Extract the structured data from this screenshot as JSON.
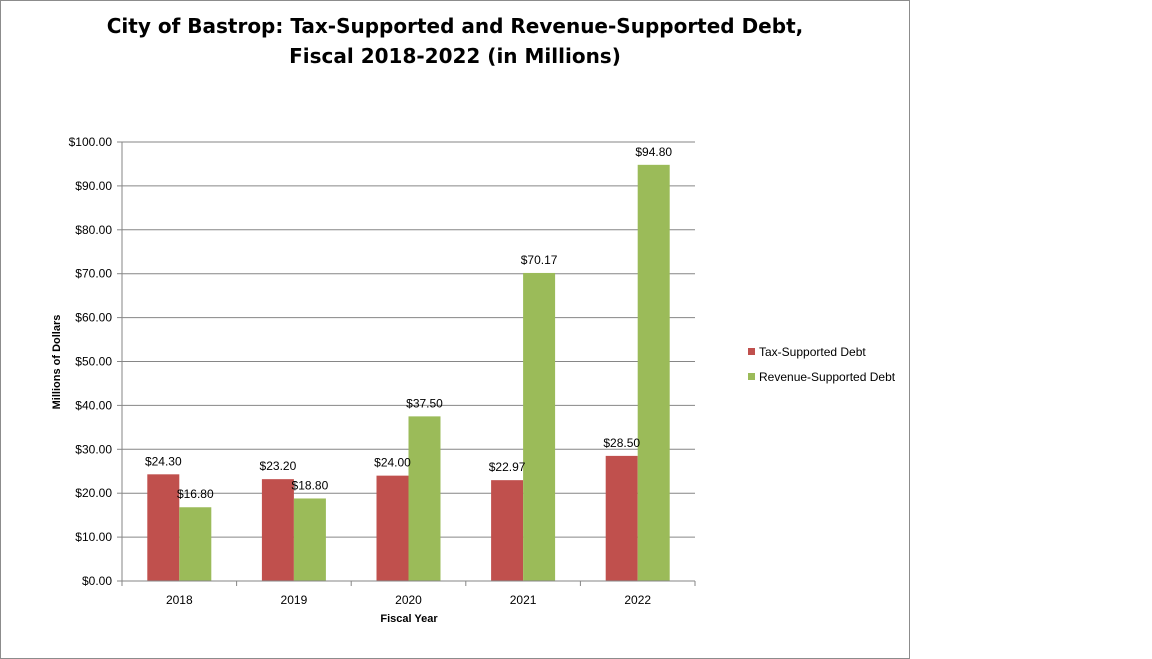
{
  "chart_data": {
    "type": "bar",
    "title_line1": "City of Bastrop: Tax-Supported and Revenue-Supported Debt,",
    "title_line2": "Fiscal 2018-2022 (in Millions)",
    "xlabel": "Fiscal  Year",
    "ylabel": "Millions of Dollars",
    "categories": [
      "2018",
      "2019",
      "2020",
      "2021",
      "2022"
    ],
    "ylim": [
      0,
      100
    ],
    "ytick_labels": [
      "$0.00",
      "$10.00",
      "$20.00",
      "$30.00",
      "$40.00",
      "$50.00",
      "$60.00",
      "$70.00",
      "$80.00",
      "$90.00",
      "$100.00"
    ],
    "ytick_values": [
      0,
      10,
      20,
      30,
      40,
      50,
      60,
      70,
      80,
      90,
      100
    ],
    "grid": true,
    "legend_position": "right",
    "series": [
      {
        "name": "Tax-Supported Debt",
        "color": "#c0504d",
        "values": [
          24.3,
          23.2,
          24.0,
          22.97,
          28.5
        ],
        "labels": [
          "$24.30",
          "$23.20",
          "$24.00",
          "$22.97",
          "$28.50"
        ]
      },
      {
        "name": "Revenue-Supported Debt",
        "color": "#9bbb59",
        "values": [
          16.8,
          18.8,
          37.5,
          70.17,
          94.8
        ],
        "labels": [
          "$16.80",
          "$18.80",
          "$37.50",
          "$70.17",
          "$94.80"
        ]
      }
    ]
  }
}
